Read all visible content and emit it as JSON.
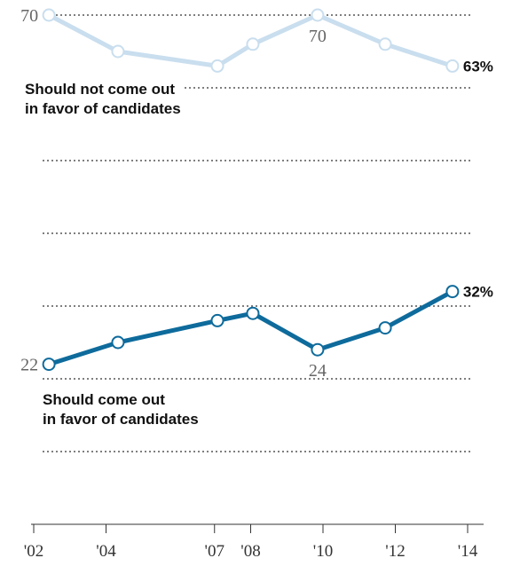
{
  "chart_data": {
    "type": "line",
    "x": [
      2002.42,
      2004.33,
      2007.08,
      2008.06,
      2009.85,
      2011.72,
      2013.58
    ],
    "xlim": [
      2002,
      2014
    ],
    "xticks": [
      {
        "value": 2002,
        "label": "'02"
      },
      {
        "value": 2004,
        "label": "'04"
      },
      {
        "value": 2007,
        "label": "'07"
      },
      {
        "value": 2008,
        "label": "'08"
      },
      {
        "value": 2010,
        "label": "'10"
      },
      {
        "value": 2012,
        "label": "'12"
      },
      {
        "value": 2014,
        "label": "'14"
      }
    ],
    "ylim": [
      0,
      70
    ],
    "yticks": [
      10,
      20,
      30,
      40,
      50,
      60,
      70
    ],
    "grid": true,
    "series": [
      {
        "name": "Should not come out\nin favor of candidates",
        "color": "#c9deee",
        "values": [
          70,
          65,
          63,
          66,
          70,
          66,
          63
        ],
        "value_labels": [
          "70",
          null,
          null,
          null,
          "70",
          null,
          "63%"
        ]
      },
      {
        "name": "Should come out\nin favor of candidates",
        "color": "#0e6b9c",
        "values": [
          22,
          25,
          28,
          29,
          24,
          27,
          32
        ],
        "value_labels": [
          "22",
          null,
          null,
          null,
          "24",
          null,
          "32%"
        ]
      }
    ]
  }
}
